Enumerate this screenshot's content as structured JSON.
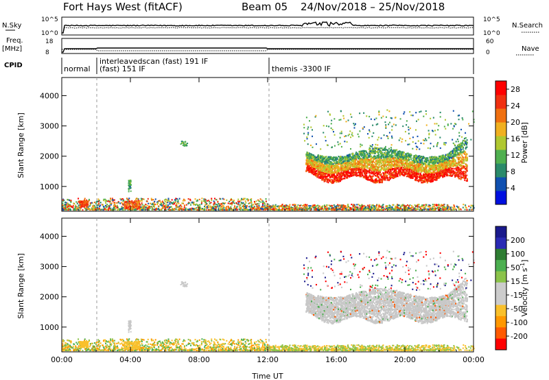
{
  "header": {
    "station": "Fort Hays West (fitACF)",
    "beam": "Beam 05",
    "date_range": "24/Nov/2018 – 25/Nov/2018"
  },
  "summary_panel": {
    "left_label_top": "N.Sky",
    "left_ticks_top": [
      "10^5",
      "10^0"
    ],
    "right_label_top": "N.Search",
    "right_ticks_top": [
      "10^5",
      "10^0"
    ],
    "left_label_freq": "Freq.",
    "left_label_freq_unit": "[MHz]",
    "left_ticks_freq": [
      "18",
      "8"
    ],
    "right_label_nave": "Nave",
    "right_ticks_nave": [
      "60",
      "0"
    ],
    "cpid_label": "CPID",
    "modes": [
      {
        "name": "normal",
        "start": 0.0
      },
      {
        "name": "interleavedscan (fast) 191 IF",
        "start": 1.9
      },
      {
        "name": "(fast) 151 IF",
        "start": 1.9
      },
      {
        "name": "themis -3300 IF",
        "start": 12.1
      }
    ]
  },
  "chart_data": [
    {
      "type": "heatmap",
      "name": "power",
      "xlabel": "Time UT",
      "ylabel": "Slant Range [km]",
      "xlim": [
        0,
        24
      ],
      "ylim": [
        180,
        4600
      ],
      "x_ticks": [
        "00:00",
        "04:00",
        "08:00",
        "12:00",
        "16:00",
        "20:00",
        "00:00"
      ],
      "y_ticks": [
        1000,
        2000,
        3000,
        4000
      ],
      "colorbar_label": "Power [dB]",
      "colorbar_ticks": [
        4,
        8,
        12,
        16,
        20,
        24,
        28
      ],
      "colorbar_range": [
        0,
        30
      ],
      "mode_boundaries": [
        1.9,
        12.1
      ]
    },
    {
      "type": "heatmap",
      "name": "velocity",
      "xlabel": "Time UT",
      "ylabel": "Slant Range [km]",
      "xlim": [
        0,
        24
      ],
      "ylim": [
        180,
        4600
      ],
      "x_ticks": [
        "00:00",
        "04:00",
        "08:00",
        "12:00",
        "16:00",
        "20:00",
        "00:00"
      ],
      "y_ticks": [
        1000,
        2000,
        3000,
        4000
      ],
      "colorbar_label": "Velocity [m s",
      "colorbar_label_sup": "-1",
      "colorbar_label_end": "]",
      "colorbar_ticks": [
        "200",
        "100",
        "50",
        "15",
        "-15",
        "-50",
        "-100",
        "-200"
      ],
      "mode_boundaries": [
        1.9,
        12.1
      ]
    }
  ],
  "colors": {
    "power_scale": [
      "#0010e0",
      "#1050b0",
      "#2a8a6a",
      "#50b050",
      "#b0c830",
      "#f0b020",
      "#f07010",
      "#f03010",
      "#ff0000"
    ],
    "velocity_scale": [
      "#1a1a8c",
      "#2a2ab4",
      "#2e7d32",
      "#4caf50",
      "#8bc34a",
      "#cccccc",
      "#cccccc",
      "#f9c02b",
      "#ff9800",
      "#ff5a00",
      "#ff0000"
    ],
    "ground_scatter": "#c8c8c8"
  }
}
